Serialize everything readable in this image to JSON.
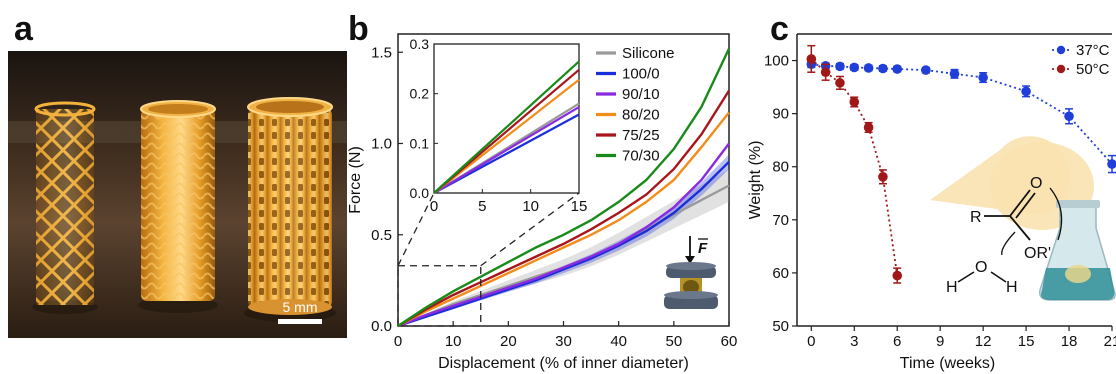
{
  "panels": {
    "a": "a",
    "b": "b",
    "c": "c"
  },
  "photo": {
    "scale_bar_label": "5 mm",
    "background_color": "#3a2a1c",
    "stent_color": "#e8a52e"
  },
  "chart_data": [
    {
      "type": "line",
      "panel": "b",
      "xlabel": "Displacement (% of inner diameter)",
      "ylabel": "Force (N)",
      "xlim": [
        0,
        60
      ],
      "ylim": [
        0,
        1.6
      ],
      "xticks": [
        0,
        10,
        20,
        30,
        40,
        50,
        60
      ],
      "yticks": [
        0.0,
        0.5,
        1.0,
        1.5
      ],
      "xtick_labels": [
        "0",
        "10",
        "20",
        "30",
        "40",
        "50",
        "60"
      ],
      "ytick_labels": [
        "0.0",
        "0.5",
        "1.0",
        "1.5"
      ],
      "legend_position": "top-right",
      "series": [
        {
          "name": "Silicone",
          "color": "#9a9a9a",
          "x": [
            0,
            5,
            10,
            15,
            20,
            25,
            30,
            35,
            40,
            45,
            50,
            55,
            60
          ],
          "y": [
            0,
            0.06,
            0.12,
            0.17,
            0.22,
            0.27,
            0.32,
            0.38,
            0.45,
            0.53,
            0.61,
            0.69,
            0.77
          ]
        },
        {
          "name": "100/0",
          "color": "#1a2fd8",
          "x": [
            0,
            5,
            10,
            15,
            20,
            25,
            30,
            35,
            40,
            45,
            50,
            55,
            60
          ],
          "y": [
            0,
            0.05,
            0.1,
            0.15,
            0.2,
            0.25,
            0.31,
            0.37,
            0.44,
            0.52,
            0.62,
            0.75,
            0.9
          ]
        },
        {
          "name": "90/10",
          "color": "#8a2be2",
          "x": [
            0,
            5,
            10,
            15,
            20,
            25,
            30,
            35,
            40,
            45,
            50,
            55,
            60
          ],
          "y": [
            0,
            0.06,
            0.11,
            0.16,
            0.21,
            0.26,
            0.32,
            0.38,
            0.45,
            0.54,
            0.65,
            0.8,
            1.0
          ]
        },
        {
          "name": "80/20",
          "color": "#f28c1b",
          "x": [
            0,
            5,
            10,
            15,
            20,
            25,
            30,
            35,
            40,
            45,
            50,
            55,
            60
          ],
          "y": [
            0,
            0.08,
            0.15,
            0.22,
            0.29,
            0.36,
            0.43,
            0.5,
            0.58,
            0.68,
            0.8,
            0.98,
            1.17
          ]
        },
        {
          "name": "75/25",
          "color": "#a8161c",
          "x": [
            0,
            5,
            10,
            15,
            20,
            25,
            30,
            35,
            40,
            45,
            50,
            55,
            60
          ],
          "y": [
            0,
            0.09,
            0.17,
            0.24,
            0.31,
            0.38,
            0.45,
            0.53,
            0.62,
            0.72,
            0.86,
            1.05,
            1.29
          ]
        },
        {
          "name": "70/30",
          "color": "#1a8a1a",
          "x": [
            0,
            5,
            10,
            15,
            20,
            25,
            30,
            35,
            40,
            45,
            50,
            55,
            60
          ],
          "y": [
            0,
            0.1,
            0.19,
            0.27,
            0.35,
            0.43,
            0.5,
            0.58,
            0.68,
            0.8,
            0.97,
            1.2,
            1.52
          ]
        }
      ],
      "inset": {
        "xlim": [
          0,
          15
        ],
        "ylim": [
          0,
          0.3
        ],
        "xticks": [
          0,
          5,
          10,
          15
        ],
        "yticks": [
          0.0,
          0.1,
          0.2,
          0.3
        ],
        "xtick_labels": [
          "0",
          "5",
          "10",
          "15"
        ],
        "ytick_labels": [
          "0.0",
          "0.1",
          "0.2",
          "0.3"
        ],
        "series": [
          {
            "name": "Silicone",
            "color": "#9a9a9a",
            "x": [
              0,
              15
            ],
            "y": [
              0,
              0.18
            ]
          },
          {
            "name": "100/0",
            "color": "#1a2fd8",
            "x": [
              0,
              15
            ],
            "y": [
              0,
              0.158
            ]
          },
          {
            "name": "90/10",
            "color": "#8a2be2",
            "x": [
              0,
              15
            ],
            "y": [
              0,
              0.173
            ]
          },
          {
            "name": "80/20",
            "color": "#f28c1b",
            "x": [
              0,
              15
            ],
            "y": [
              0,
              0.228
            ]
          },
          {
            "name": "75/25",
            "color": "#a8161c",
            "x": [
              0,
              15
            ],
            "y": [
              0,
              0.248
            ]
          },
          {
            "name": "70/30",
            "color": "#1a8a1a",
            "x": [
              0,
              15
            ],
            "y": [
              0,
              0.265
            ]
          }
        ]
      },
      "annotations": {
        "force_vector_label": "F"
      }
    },
    {
      "type": "scatter",
      "panel": "c",
      "xlabel": "Time (weeks)",
      "ylabel": "Weight (%)",
      "xlim": [
        -1,
        21
      ],
      "ylim": [
        50,
        105
      ],
      "xticks": [
        0,
        3,
        6,
        9,
        12,
        15,
        18,
        21
      ],
      "yticks": [
        50,
        60,
        70,
        80,
        90,
        100
      ],
      "xtick_labels": [
        "0",
        "3",
        "6",
        "9",
        "12",
        "15",
        "18",
        "21"
      ],
      "ytick_labels": [
        "50",
        "60",
        "70",
        "80",
        "90",
        "100"
      ],
      "legend_position": "top-right",
      "series": [
        {
          "name": "37°C",
          "color": "#1f3fd8",
          "x": [
            0,
            1,
            2,
            3,
            4,
            5,
            6,
            8,
            10,
            12,
            15,
            18,
            21
          ],
          "y": [
            99.3,
            99.0,
            98.9,
            98.7,
            98.6,
            98.5,
            98.4,
            98.2,
            97.5,
            96.8,
            94.2,
            89.5,
            80.5
          ],
          "err": [
            0.6,
            0.5,
            0.5,
            0.5,
            0.5,
            0.5,
            0.5,
            0.5,
            0.8,
            0.9,
            1.0,
            1.4,
            1.6
          ]
        },
        {
          "name": "50°C",
          "color": "#a01818",
          "x": [
            0,
            1,
            2,
            3,
            4,
            5,
            6
          ],
          "y": [
            100.3,
            97.8,
            95.8,
            92.2,
            87.4,
            78.1,
            59.5
          ],
          "err": [
            2.5,
            1.5,
            1.2,
            0.9,
            0.9,
            1.3,
            1.4
          ]
        }
      ],
      "annotations": {
        "chem": {
          "r": "R",
          "o_carbonyl": "O",
          "or_prime": "OR'",
          "o_water": "O",
          "h_left": "H",
          "h_right": "H"
        }
      }
    }
  ]
}
